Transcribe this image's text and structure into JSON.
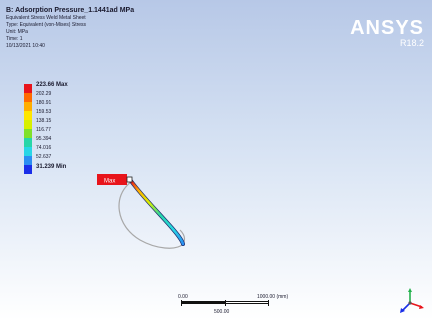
{
  "info": {
    "title": "B: Adsorption Pressure_1.1441ad MPa",
    "lines": [
      "Equivalent Stress Weld Metal Sheet",
      "Type: Equivalent (von-Mises) Stress",
      "Unit: MPa",
      "Time: 1",
      "10/13/2021 10:40"
    ]
  },
  "legend": {
    "max_label": "223.66 Max",
    "min_label": "31.239 Min",
    "levels": [
      "202.29",
      "180.91",
      "159.53",
      "138.15",
      "116.77",
      "95.394",
      "74.016",
      "52.637"
    ],
    "colors": [
      "#e8141b",
      "#ff6a00",
      "#ffae00",
      "#ffe600",
      "#d7f000",
      "#7fe12b",
      "#27d6a8",
      "#28d6e6",
      "#2b8ef2",
      "#1a2ee8"
    ]
  },
  "probe": {
    "label": "Max"
  },
  "brand": {
    "name": "ANSYS",
    "version": "R18.2"
  },
  "scale": {
    "start": "0.00",
    "end": "1000.00 (mm)",
    "mid": "500.00"
  }
}
